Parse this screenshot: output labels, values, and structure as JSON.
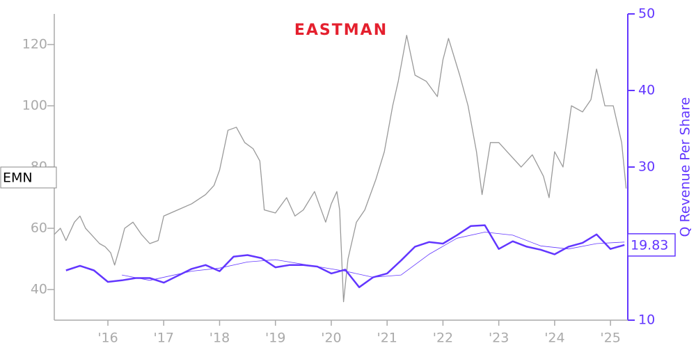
{
  "chart_data": {
    "type": "line",
    "logo": "EASTMAN",
    "ticker": "EMN",
    "y2_label": "Q Revenue Per Share",
    "xlim": [
      2015.04,
      2025.31
    ],
    "xticks": [
      {
        "value": 2016,
        "label": "'16"
      },
      {
        "value": 2017,
        "label": "'17"
      },
      {
        "value": 2018,
        "label": "'18"
      },
      {
        "value": 2019,
        "label": "'19"
      },
      {
        "value": 2020,
        "label": "'20"
      },
      {
        "value": 2021,
        "label": "'21"
      },
      {
        "value": 2022,
        "label": "'22"
      },
      {
        "value": 2023,
        "label": "'23"
      },
      {
        "value": 2024,
        "label": "'24"
      },
      {
        "value": 2025,
        "label": "'25"
      }
    ],
    "ylim": [
      30,
      130
    ],
    "yticks": [
      40,
      60,
      80,
      100,
      120
    ],
    "y2lim": [
      10,
      50
    ],
    "y2ticks": [
      10,
      30,
      40,
      50
    ],
    "series": [
      {
        "color": "#999999",
        "axis": "y",
        "x": [
          2015.04,
          2015.15,
          2015.25,
          2015.4,
          2015.5,
          2015.6,
          2015.7,
          2015.85,
          2015.95,
          2016.05,
          2016.12,
          2016.2,
          2016.3,
          2016.45,
          2016.6,
          2016.75,
          2016.9,
          2017.0,
          2017.25,
          2017.5,
          2017.75,
          2017.9,
          2018.0,
          2018.15,
          2018.3,
          2018.45,
          2018.6,
          2018.72,
          2018.8,
          2019.0,
          2019.2,
          2019.35,
          2019.5,
          2019.7,
          2019.9,
          2020.0,
          2020.1,
          2020.15,
          2020.22,
          2020.3,
          2020.45,
          2020.6,
          2020.8,
          2020.95,
          2021.1,
          2021.2,
          2021.35,
          2021.5,
          2021.7,
          2021.9,
          2022.0,
          2022.1,
          2022.3,
          2022.45,
          2022.6,
          2022.7,
          2022.85,
          2023.0,
          2023.2,
          2023.4,
          2023.6,
          2023.8,
          2023.9,
          2024.0,
          2024.15,
          2024.3,
          2024.5,
          2024.65,
          2024.75,
          2024.9,
          2025.05,
          2025.2,
          2025.28
        ],
        "values": [
          58,
          60,
          56,
          62,
          64,
          60,
          58,
          55,
          54,
          52,
          48,
          53,
          60,
          62,
          58,
          55,
          56,
          64,
          66,
          68,
          71,
          74,
          79,
          92,
          93,
          88,
          86,
          82,
          66,
          65,
          70,
          64,
          66,
          72,
          62,
          68,
          72,
          66,
          36,
          50,
          62,
          66,
          76,
          85,
          100,
          108,
          123,
          110,
          108,
          103,
          115,
          122,
          110,
          100,
          85,
          71,
          88,
          88,
          84,
          80,
          84,
          77,
          70,
          85,
          80,
          100,
          98,
          102,
          112,
          100,
          100,
          88,
          73
        ]
      },
      {
        "color": "#6236ff",
        "axis": "y2",
        "x": [
          2015.25,
          2015.5,
          2015.75,
          2016.0,
          2016.25,
          2016.5,
          2016.75,
          2017.0,
          2017.25,
          2017.5,
          2017.75,
          2018.0,
          2018.25,
          2018.5,
          2018.75,
          2019.0,
          2019.25,
          2019.5,
          2019.75,
          2020.0,
          2020.25,
          2020.5,
          2020.75,
          2021.0,
          2021.25,
          2021.5,
          2021.75,
          2022.0,
          2022.25,
          2022.5,
          2022.75,
          2023.0,
          2023.25,
          2023.5,
          2023.75,
          2024.0,
          2024.25,
          2024.5,
          2024.75,
          2025.0,
          2025.25
        ],
        "values": [
          16.5,
          17.1,
          16.5,
          15.0,
          15.2,
          15.5,
          15.5,
          14.9,
          15.8,
          16.7,
          17.2,
          16.4,
          18.3,
          18.5,
          18.1,
          16.9,
          17.2,
          17.2,
          17.0,
          16.1,
          16.6,
          14.3,
          15.6,
          16.1,
          17.8,
          19.6,
          20.2,
          20.0,
          21.1,
          22.3,
          22.4,
          19.3,
          20.3,
          19.6,
          19.2,
          18.6,
          19.6,
          20.1,
          21.2,
          19.3,
          19.83
        ]
      },
      {
        "color": "#6236ff",
        "axis": "y2",
        "x": [
          2016.25,
          2016.75,
          2017.5,
          2018.0,
          2018.5,
          2019.0,
          2019.75,
          2020.25,
          2020.75,
          2021.25,
          2021.75,
          2022.25,
          2022.75,
          2023.25,
          2023.75,
          2024.25,
          2024.75,
          2025.25
        ],
        "values": [
          15.9,
          15.2,
          16.4,
          16.8,
          17.6,
          17.9,
          17.0,
          16.4,
          15.6,
          15.9,
          18.6,
          20.7,
          21.5,
          21.1,
          19.7,
          19.3,
          20.0,
          20.2
        ]
      }
    ]
  }
}
